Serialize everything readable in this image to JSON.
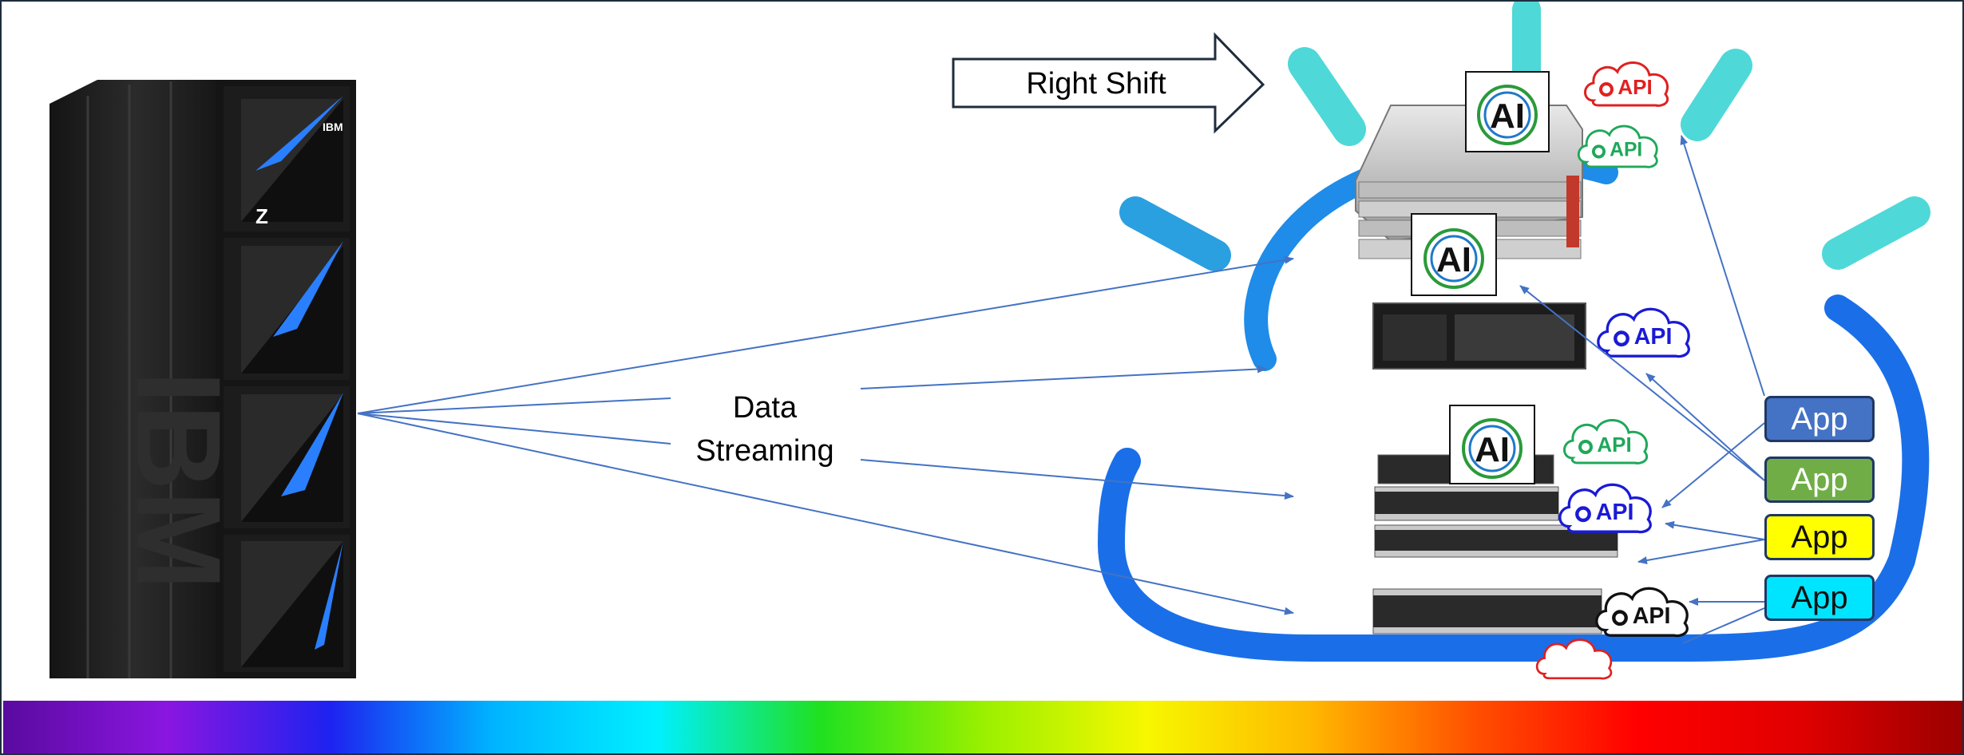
{
  "labels": {
    "right_shift": "Right Shift",
    "data_streaming_line1": "Data",
    "data_streaming_line2": "Streaming"
  },
  "mainframe": {
    "brand_mark": "IBM",
    "model_letter": "Z"
  },
  "ai_badges": [
    "AI",
    "AI",
    "AI"
  ],
  "api_clouds": [
    {
      "text": "API",
      "color": "#e02020"
    },
    {
      "text": "API",
      "color": "#1fa85a"
    },
    {
      "text": "API",
      "color": "#1a1ad6"
    },
    {
      "text": "API",
      "color": "#1fa85a"
    },
    {
      "text": "API",
      "color": "#1a1ad6"
    },
    {
      "text": "API",
      "color": "#111111"
    },
    {
      "text": "",
      "color": "#e02020"
    }
  ],
  "apps": [
    {
      "label": "App",
      "color": "#4472c4"
    },
    {
      "label": "App",
      "color": "#70ad47"
    },
    {
      "label": "App",
      "color": "#ffff00"
    },
    {
      "label": "App",
      "color": "#00e5ff"
    }
  ],
  "colors": {
    "arrow": "#4472c4",
    "ibm_cloud_blue": "#1e7fe0",
    "ibm_cloud_cyan": "#4fd8d8",
    "server_body": "#2a2a2a",
    "frame": "#1f2d3d"
  },
  "spectrum_bar": [
    "#5a0aa0",
    "#8a16e0",
    "#1e22f0",
    "#00b4ff",
    "#00f0ff",
    "#20e020",
    "#9af000",
    "#f7f700",
    "#ffb800",
    "#ff5000",
    "#ff0000",
    "#e00000",
    "#9a0000"
  ]
}
